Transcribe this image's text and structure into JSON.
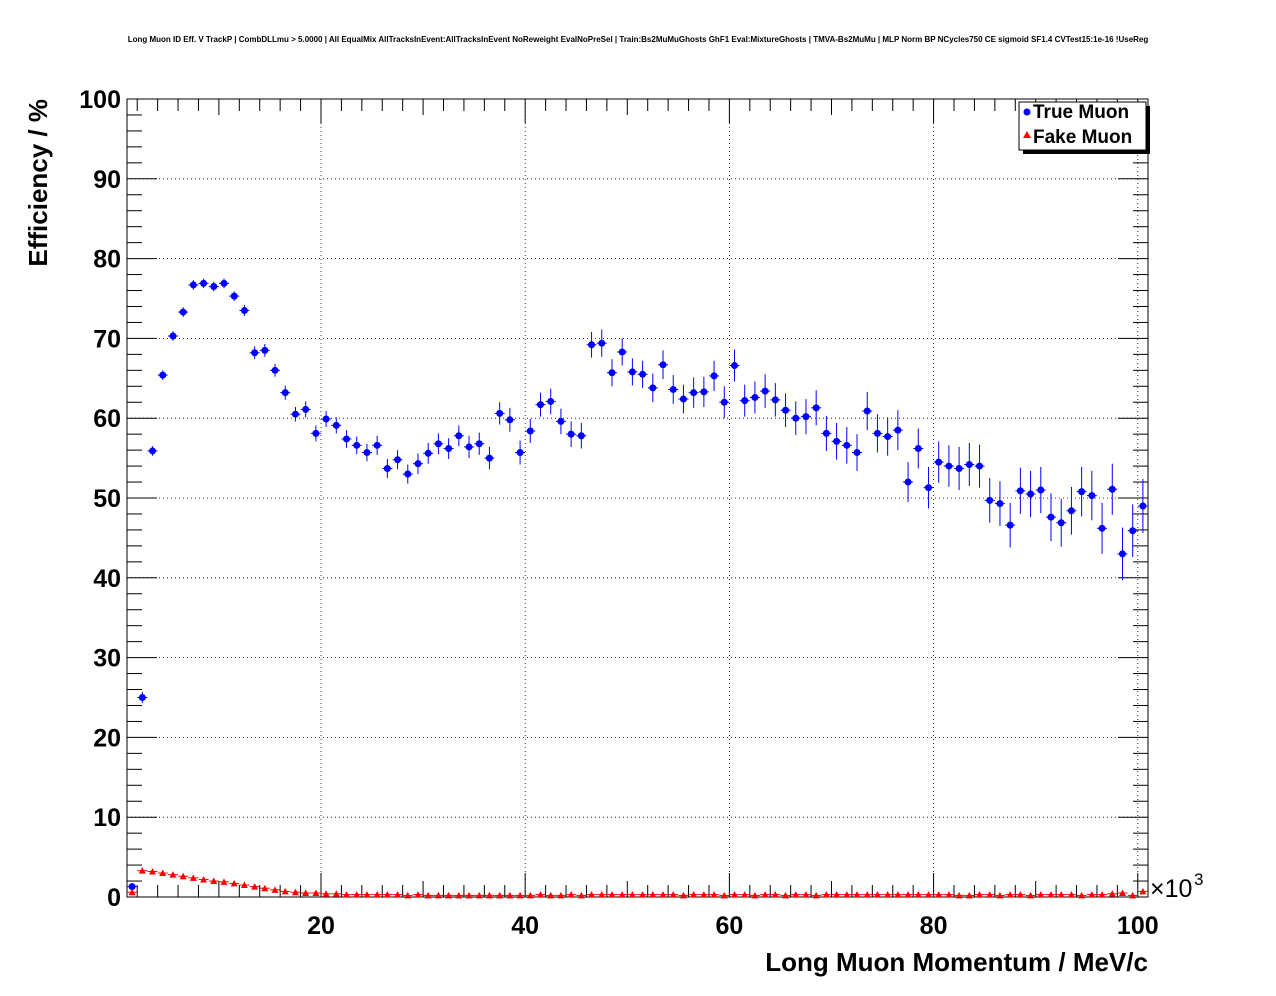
{
  "chart_data": {
    "type": "scatter",
    "title": "Long Muon ID Eff. V TrackP | CombDLLmu > 5.0000 | All EqualMix AllTracksInEvent:AllTracksInEvent NoReweight EvalNoPreSel | Train:Bs2MuMuGhosts GhF1 Eval:MixtureGhosts | TMVA-Bs2MuMu | MLP Norm BP NCycles750 CE sigmoid SF1.4 CVTest15:1e-16 !UseReg",
    "xlabel": "Long Muon Momentum / MeV/c",
    "ylabel": "Efficiency / %",
    "x_multiplier": "×10",
    "x_multiplier_exp": "3",
    "xlim": [
      1,
      101
    ],
    "ylim": [
      0,
      100
    ],
    "x_ticks": [
      20,
      40,
      60,
      80,
      100
    ],
    "x_tick_labels": [
      "20",
      "40",
      "60",
      "80",
      "100"
    ],
    "y_ticks": [
      0,
      10,
      20,
      30,
      40,
      50,
      60,
      70,
      80,
      90,
      100
    ],
    "y_tick_labels": [
      "0",
      "10",
      "20",
      "30",
      "40",
      "50",
      "60",
      "70",
      "80",
      "90",
      "100"
    ],
    "grid": true,
    "legend_position": "top-right",
    "series": [
      {
        "name": "True Muon",
        "color": "#0000ff",
        "marker": "circle",
        "x": [
          1.5,
          2.5,
          3.5,
          4.5,
          5.5,
          6.5,
          7.5,
          8.5,
          9.5,
          10.5,
          11.5,
          12.5,
          13.5,
          14.5,
          15.5,
          16.5,
          17.5,
          18.5,
          19.5,
          20.5,
          21.5,
          22.5,
          23.5,
          24.5,
          25.5,
          26.5,
          27.5,
          28.5,
          29.5,
          30.5,
          31.5,
          32.5,
          33.5,
          34.5,
          35.5,
          36.5,
          37.5,
          38.5,
          39.5,
          40.5,
          41.5,
          42.5,
          43.5,
          44.5,
          45.5,
          46.5,
          47.5,
          48.5,
          49.5,
          50.5,
          51.5,
          52.5,
          53.5,
          54.5,
          55.5,
          56.5,
          57.5,
          58.5,
          59.5,
          60.5,
          61.5,
          62.5,
          63.5,
          64.5,
          65.5,
          66.5,
          67.5,
          68.5,
          69.5,
          70.5,
          71.5,
          72.5,
          73.5,
          74.5,
          75.5,
          76.5,
          77.5,
          78.5,
          79.5,
          80.5,
          81.5,
          82.5,
          83.5,
          84.5,
          85.5,
          86.5,
          87.5,
          88.5,
          89.5,
          90.5,
          91.5,
          92.5,
          93.5,
          94.5,
          95.5,
          96.5,
          97.5,
          98.5,
          99.5,
          100.5
        ],
        "y": [
          1.3,
          25.0,
          55.9,
          65.4,
          70.3,
          73.3,
          76.7,
          76.9,
          76.5,
          76.9,
          75.3,
          73.5,
          68.2,
          68.5,
          66.0,
          63.2,
          60.5,
          61.1,
          58.1,
          59.9,
          59.1,
          57.4,
          56.6,
          55.7,
          56.6,
          53.7,
          54.8,
          53.0,
          54.3,
          55.6,
          56.8,
          56.2,
          57.8,
          56.4,
          56.8,
          55.0,
          60.6,
          59.8,
          55.7,
          58.4,
          61.7,
          62.1,
          59.6,
          58.0,
          57.8,
          69.2,
          69.4,
          65.7,
          68.3,
          65.8,
          65.5,
          63.8,
          66.7,
          63.6,
          62.4,
          63.2,
          63.3,
          65.3,
          62.0,
          66.6,
          62.2,
          62.6,
          63.4,
          62.3,
          61.0,
          60.0,
          60.2,
          61.3,
          58.1,
          57.1,
          56.6,
          55.7,
          60.9,
          58.1,
          57.7,
          58.5,
          52.0,
          56.2,
          51.3,
          54.5,
          54.0,
          53.7,
          54.2,
          54.0,
          49.7,
          49.3,
          46.6,
          50.9,
          50.5,
          51.0,
          47.6,
          46.9,
          48.4,
          50.8,
          50.3,
          46.2,
          51.1,
          43.0,
          45.9,
          49.0
        ],
        "yerr": [
          0.4,
          0.7,
          0.6,
          0.6,
          0.6,
          0.6,
          0.6,
          0.6,
          0.6,
          0.6,
          0.6,
          0.7,
          0.8,
          0.8,
          0.8,
          0.9,
          0.9,
          1.0,
          1.0,
          1.0,
          1.0,
          1.1,
          1.1,
          1.1,
          1.2,
          1.2,
          1.2,
          1.2,
          1.3,
          1.3,
          1.3,
          1.3,
          1.3,
          1.4,
          1.4,
          1.4,
          1.4,
          1.5,
          1.5,
          1.5,
          1.5,
          1.6,
          1.6,
          1.6,
          1.6,
          1.6,
          1.7,
          1.7,
          1.7,
          1.7,
          1.7,
          1.8,
          1.8,
          1.8,
          1.8,
          1.9,
          1.9,
          1.9,
          2.0,
          2.0,
          2.0,
          2.0,
          2.1,
          2.1,
          2.1,
          2.1,
          2.2,
          2.2,
          2.2,
          2.3,
          2.3,
          2.3,
          2.4,
          2.4,
          2.4,
          2.5,
          2.5,
          2.5,
          2.6,
          2.6,
          2.6,
          2.7,
          2.7,
          2.7,
          2.8,
          2.8,
          2.8,
          2.9,
          2.9,
          2.9,
          3.0,
          3.0,
          3.0,
          3.1,
          3.1,
          3.2,
          3.2,
          3.3,
          3.3,
          3.4
        ]
      },
      {
        "name": "Fake Muon",
        "color": "#ff0000",
        "marker": "triangle",
        "x": [
          1.5,
          2.5,
          3.5,
          4.5,
          5.5,
          6.5,
          7.5,
          8.5,
          9.5,
          10.5,
          11.5,
          12.5,
          13.5,
          14.5,
          15.5,
          16.5,
          17.5,
          18.5,
          19.5,
          20.5,
          21.5,
          22.5,
          23.5,
          24.5,
          25.5,
          26.5,
          27.5,
          28.5,
          29.5,
          30.5,
          31.5,
          32.5,
          33.5,
          34.5,
          35.5,
          36.5,
          37.5,
          38.5,
          39.5,
          40.5,
          41.5,
          42.5,
          43.5,
          44.5,
          45.5,
          46.5,
          47.5,
          48.5,
          49.5,
          50.5,
          51.5,
          52.5,
          53.5,
          54.5,
          55.5,
          56.5,
          57.5,
          58.5,
          59.5,
          60.5,
          61.5,
          62.5,
          63.5,
          64.5,
          65.5,
          66.5,
          67.5,
          68.5,
          69.5,
          70.5,
          71.5,
          72.5,
          73.5,
          74.5,
          75.5,
          76.5,
          77.5,
          78.5,
          79.5,
          80.5,
          81.5,
          82.5,
          83.5,
          84.5,
          85.5,
          86.5,
          87.5,
          88.5,
          89.5,
          90.5,
          91.5,
          92.5,
          93.5,
          94.5,
          95.5,
          96.5,
          97.5,
          98.5,
          99.5,
          100.5
        ],
        "y": [
          0.6,
          3.3,
          3.2,
          3.0,
          2.8,
          2.6,
          2.4,
          2.2,
          2.0,
          1.9,
          1.7,
          1.5,
          1.3,
          1.1,
          0.9,
          0.7,
          0.6,
          0.5,
          0.5,
          0.4,
          0.4,
          0.3,
          0.3,
          0.3,
          0.3,
          0.3,
          0.3,
          0.2,
          0.3,
          0.2,
          0.2,
          0.2,
          0.2,
          0.2,
          0.2,
          0.2,
          0.2,
          0.2,
          0.2,
          0.2,
          0.3,
          0.2,
          0.2,
          0.3,
          0.2,
          0.3,
          0.3,
          0.3,
          0.3,
          0.3,
          0.3,
          0.3,
          0.3,
          0.3,
          0.2,
          0.3,
          0.3,
          0.3,
          0.2,
          0.3,
          0.3,
          0.2,
          0.3,
          0.3,
          0.2,
          0.3,
          0.3,
          0.2,
          0.3,
          0.3,
          0.3,
          0.3,
          0.3,
          0.3,
          0.3,
          0.3,
          0.3,
          0.3,
          0.3,
          0.3,
          0.3,
          0.2,
          0.2,
          0.3,
          0.3,
          0.2,
          0.3,
          0.3,
          0.2,
          0.3,
          0.3,
          0.3,
          0.3,
          0.2,
          0.3,
          0.3,
          0.4,
          0.5,
          0.2,
          0.7
        ],
        "yerr": [
          0.1,
          0.2,
          0.2,
          0.1,
          0.1,
          0.1,
          0.1,
          0.1,
          0.1,
          0.1,
          0.1,
          0.1,
          0.1,
          0.1,
          0.1,
          0.1,
          0.1,
          0.1,
          0.1,
          0.1,
          0.1,
          0.1,
          0.1,
          0.1,
          0.1,
          0.1,
          0.1,
          0.1,
          0.1,
          0.1,
          0.1,
          0.1,
          0.1,
          0.1,
          0.1,
          0.1,
          0.1,
          0.1,
          0.1,
          0.1,
          0.1,
          0.1,
          0.1,
          0.1,
          0.1,
          0.1,
          0.1,
          0.1,
          0.1,
          0.1,
          0.1,
          0.1,
          0.1,
          0.1,
          0.1,
          0.1,
          0.1,
          0.1,
          0.1,
          0.1,
          0.1,
          0.1,
          0.1,
          0.1,
          0.1,
          0.1,
          0.1,
          0.1,
          0.1,
          0.1,
          0.1,
          0.1,
          0.1,
          0.1,
          0.1,
          0.1,
          0.1,
          0.1,
          0.1,
          0.1,
          0.1,
          0.1,
          0.1,
          0.1,
          0.1,
          0.1,
          0.1,
          0.1,
          0.1,
          0.1,
          0.1,
          0.1,
          0.1,
          0.1,
          0.1,
          0.1,
          0.1,
          0.2,
          0.1,
          0.2
        ]
      }
    ]
  }
}
